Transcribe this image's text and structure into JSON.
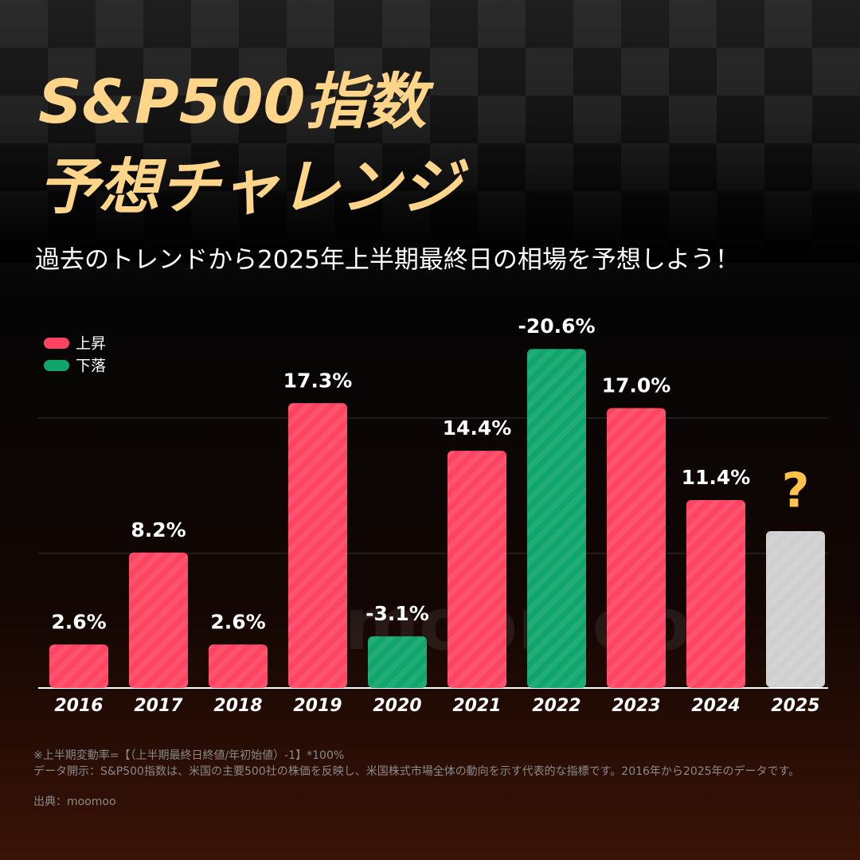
{
  "chart_data": {
    "type": "bar",
    "title": [
      "S&P500指数",
      "予想チャレンジ"
    ],
    "subtitle": "過去のトレンドから2025年上半期最終日の相場を予想しよう！",
    "legend": [
      {
        "name": "上昇",
        "color": "#ff4462"
      },
      {
        "name": "下落",
        "color": "#0fa56c"
      }
    ],
    "categories": [
      "2016",
      "2017",
      "2018",
      "2019",
      "2020",
      "2021",
      "2022",
      "2023",
      "2024",
      "2025"
    ],
    "values": [
      2.6,
      8.2,
      2.6,
      17.3,
      -3.1,
      14.4,
      -20.6,
      17.0,
      11.4,
      null
    ],
    "value_labels": [
      "2.6%",
      "8.2%",
      "2.6%",
      "17.3%",
      "-3.1%",
      "14.4%",
      "-20.6%",
      "17.0%",
      "11.4%",
      "?"
    ],
    "ylim": [
      0,
      21
    ],
    "watermark": "moomoo",
    "notes": [
      "※上半期変動率=【（上半期最終日終値/年初始値）-1】*100%",
      "データ開示：S&P500指数は、米国の主要500社の株価を反映し、米国株式市場全体の動向を示す代表的な指標です。2016年から2025年のデータです。",
      "出典：moomoo"
    ]
  }
}
